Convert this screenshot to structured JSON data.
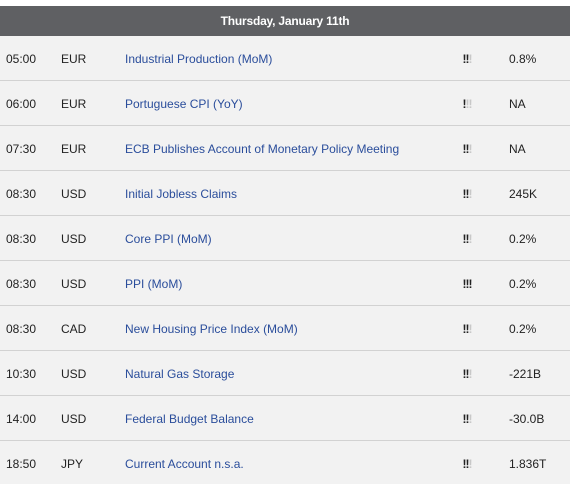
{
  "header": {
    "date": "Thursday, January 11th"
  },
  "events": [
    {
      "time": "05:00",
      "currency": "EUR",
      "name": "Industrial Production (MoM)",
      "impact": 2,
      "value": "0.8%"
    },
    {
      "time": "06:00",
      "currency": "EUR",
      "name": "Portuguese CPI (YoY)",
      "impact": 1,
      "value": "NA"
    },
    {
      "time": "07:30",
      "currency": "EUR",
      "name": "ECB Publishes Account of Monetary Policy Meeting",
      "impact": 2,
      "value": "NA"
    },
    {
      "time": "08:30",
      "currency": "USD",
      "name": "Initial Jobless Claims",
      "impact": 2,
      "value": "245K"
    },
    {
      "time": "08:30",
      "currency": "USD",
      "name": "Core PPI (MoM)",
      "impact": 2,
      "value": "0.2%"
    },
    {
      "time": "08:30",
      "currency": "USD",
      "name": "PPI (MoM)",
      "impact": 3,
      "value": "0.2%"
    },
    {
      "time": "08:30",
      "currency": "CAD",
      "name": "New Housing Price Index (MoM)",
      "impact": 2,
      "value": "0.2%"
    },
    {
      "time": "10:30",
      "currency": "USD",
      "name": "Natural Gas Storage",
      "impact": 2,
      "value": "-221B"
    },
    {
      "time": "14:00",
      "currency": "USD",
      "name": "Federal Budget Balance",
      "impact": 2,
      "value": "-30.0B"
    },
    {
      "time": "18:50",
      "currency": "JPY",
      "name": "Current Account n.s.a.",
      "impact": 2,
      "value": "1.836T"
    }
  ]
}
